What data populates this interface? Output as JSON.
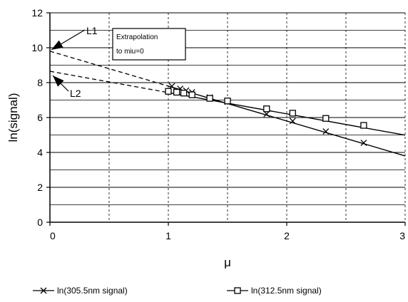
{
  "chart_data": {
    "type": "line",
    "title": "",
    "xlabel": "μ",
    "ylabel": "ln(signal)",
    "xlim": [
      0,
      3
    ],
    "ylim": [
      0,
      12
    ],
    "x_ticks": [
      "0",
      "1",
      "2",
      "3"
    ],
    "y_ticks": [
      "0",
      "2",
      "4",
      "6",
      "8",
      "10",
      "12"
    ],
    "grid": "horizontal major and minor lines every 1 unit",
    "legend_position": "bottom",
    "series": [
      {
        "name": "ln(305.5nm signal)",
        "marker": "x",
        "x": [
          1.03,
          1.1,
          1.15,
          1.2,
          1.35,
          1.5,
          1.83,
          2.05,
          2.33,
          2.65
        ],
        "y": [
          7.8,
          7.65,
          7.55,
          7.45,
          7.15,
          6.9,
          6.2,
          5.8,
          5.2,
          4.55
        ]
      },
      {
        "name": "ln(312.5nm signal)",
        "marker": "square",
        "x": [
          1.0,
          1.07,
          1.13,
          1.2,
          1.35,
          1.5,
          1.83,
          2.05,
          2.33,
          2.65
        ],
        "y": [
          7.5,
          7.45,
          7.4,
          7.3,
          7.1,
          6.95,
          6.5,
          6.25,
          5.95,
          5.55
        ]
      }
    ],
    "fit_lines": [
      {
        "series": "ln(305.5nm signal)",
        "intercept": 9.8,
        "slope": -2.0
      },
      {
        "series": "ln(312.5nm signal)",
        "intercept": 8.65,
        "slope": -1.22
      }
    ],
    "annotations": [
      {
        "text": "L1",
        "x": 0,
        "y": 9.8
      },
      {
        "text": "L2",
        "x": 0,
        "y": 8.65
      },
      {
        "lines": [
          "Extrapolation",
          "to miu=0"
        ]
      }
    ]
  }
}
